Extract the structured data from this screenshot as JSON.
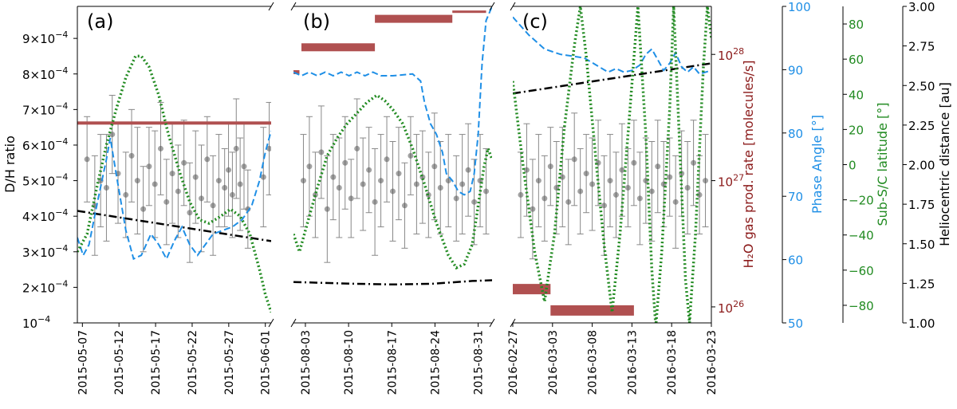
{
  "chart_data": [
    {
      "type": "scatter",
      "panel_label": "(a)",
      "x_ticks": [
        "2015-05-07",
        "2015-05-12",
        "2015-05-17",
        "2015-05-22",
        "2015-05-27",
        "2015-06-01"
      ],
      "ylabel": "D/H ratio",
      "y_ticks": [
        {
          "mantissa": "9×10",
          "exp": "−4",
          "value": 9.0
        },
        {
          "mantissa": "8×10",
          "exp": "−4",
          "value": 8.0
        },
        {
          "mantissa": "7×10",
          "exp": "−4",
          "value": 7.0
        },
        {
          "mantissa": "6×10",
          "exp": "−4",
          "value": 6.0
        },
        {
          "mantissa": "5×10",
          "exp": "−4",
          "value": 5.0
        },
        {
          "mantissa": "4×10",
          "exp": "−4",
          "value": 4.0
        },
        {
          "mantissa": "3×10",
          "exp": "−4",
          "value": 3.0
        },
        {
          "mantissa": "2×10",
          "exp": "−4",
          "value": 2.0
        },
        {
          "mantissa": "10",
          "exp": "−4",
          "value": 1.0
        }
      ],
      "ylim_1e4": [
        1.0,
        9.9
      ],
      "dh_points": [
        [
          0.05,
          5.6,
          1.2
        ],
        [
          0.09,
          4.3,
          1.4
        ],
        [
          0.12,
          5.0,
          1.3
        ],
        [
          0.15,
          4.8,
          1.5
        ],
        [
          0.18,
          6.3,
          1.1
        ],
        [
          0.21,
          5.2,
          1.4
        ],
        [
          0.25,
          4.6,
          1.2
        ],
        [
          0.28,
          5.7,
          1.3
        ],
        [
          0.31,
          5.0,
          1.5
        ],
        [
          0.34,
          4.2,
          1.2
        ],
        [
          0.37,
          5.4,
          1.1
        ],
        [
          0.4,
          4.9,
          1.5
        ],
        [
          0.43,
          5.9,
          1.3
        ],
        [
          0.46,
          4.4,
          1.2
        ],
        [
          0.49,
          5.2,
          1.4
        ],
        [
          0.52,
          4.7,
          1.3
        ],
        [
          0.55,
          5.5,
          1.2
        ],
        [
          0.58,
          4.1,
          1.4
        ],
        [
          0.61,
          5.1,
          1.3
        ],
        [
          0.64,
          4.5,
          1.5
        ],
        [
          0.67,
          5.6,
          1.2
        ],
        [
          0.7,
          4.3,
          1.4
        ],
        [
          0.73,
          5.0,
          1.3
        ],
        [
          0.76,
          4.8,
          1.1
        ],
        [
          0.78,
          5.3,
          1.3
        ],
        [
          0.8,
          4.6,
          1.2
        ],
        [
          0.82,
          5.9,
          1.4
        ],
        [
          0.84,
          4.9,
          1.3
        ],
        [
          0.86,
          5.4,
          1.2
        ],
        [
          0.88,
          4.2,
          1.1
        ],
        [
          0.96,
          5.1,
          1.4
        ],
        [
          0.99,
          5.9,
          1.3
        ]
      ],
      "water_bars": [
        {
          "start": 0.0,
          "end": 1.0,
          "level": 6.62
        }
      ],
      "phase_angle": [
        [
          0.0,
          3.4
        ],
        [
          0.03,
          2.9
        ],
        [
          0.06,
          3.2
        ],
        [
          0.1,
          4.3
        ],
        [
          0.15,
          5.6
        ],
        [
          0.17,
          6.2
        ],
        [
          0.2,
          5.2
        ],
        [
          0.25,
          3.6
        ],
        [
          0.29,
          2.8
        ],
        [
          0.33,
          2.9
        ],
        [
          0.38,
          3.5
        ],
        [
          0.42,
          3.2
        ],
        [
          0.46,
          2.8
        ],
        [
          0.5,
          3.3
        ],
        [
          0.54,
          3.7
        ],
        [
          0.58,
          3.2
        ],
        [
          0.62,
          2.9
        ],
        [
          0.66,
          3.2
        ],
        [
          0.7,
          3.5
        ],
        [
          0.75,
          3.6
        ],
        [
          0.8,
          3.7
        ],
        [
          0.85,
          3.9
        ],
        [
          0.9,
          4.3
        ],
        [
          0.94,
          5.0
        ],
        [
          0.97,
          5.8
        ],
        [
          1.0,
          6.4
        ]
      ],
      "sub_sc_latitude": [
        [
          0.0,
          3.0
        ],
        [
          0.05,
          3.5
        ],
        [
          0.1,
          4.8
        ],
        [
          0.15,
          6.0
        ],
        [
          0.2,
          7.0
        ],
        [
          0.25,
          7.9
        ],
        [
          0.3,
          8.5
        ],
        [
          0.33,
          8.5
        ],
        [
          0.37,
          8.2
        ],
        [
          0.42,
          7.4
        ],
        [
          0.47,
          6.3
        ],
        [
          0.53,
          5.2
        ],
        [
          0.58,
          4.4
        ],
        [
          0.63,
          3.9
        ],
        [
          0.68,
          3.8
        ],
        [
          0.74,
          4.0
        ],
        [
          0.79,
          4.2
        ],
        [
          0.84,
          4.0
        ],
        [
          0.89,
          3.5
        ],
        [
          0.94,
          2.5
        ],
        [
          0.97,
          1.8
        ],
        [
          1.0,
          1.3
        ]
      ],
      "heliocentric_distance": [
        [
          0.0,
          4.15
        ],
        [
          1.0,
          3.3
        ]
      ]
    },
    {
      "type": "scatter",
      "panel_label": "(b)",
      "x_ticks": [
        "2015-08-03",
        "2015-08-10",
        "2015-08-17",
        "2015-08-24",
        "2015-08-31"
      ],
      "ylim_1e4": [
        1.0,
        9.9
      ],
      "dh_points": [
        [
          0.05,
          5.0,
          1.3
        ],
        [
          0.08,
          5.4,
          1.4
        ],
        [
          0.11,
          4.6,
          1.2
        ],
        [
          0.14,
          5.8,
          1.3
        ],
        [
          0.17,
          4.2,
          1.5
        ],
        [
          0.2,
          5.1,
          1.2
        ],
        [
          0.23,
          4.8,
          1.4
        ],
        [
          0.26,
          5.5,
          1.3
        ],
        [
          0.29,
          4.5,
          1.1
        ],
        [
          0.32,
          5.9,
          1.4
        ],
        [
          0.35,
          4.9,
          1.3
        ],
        [
          0.38,
          5.3,
          1.2
        ],
        [
          0.41,
          4.4,
          1.5
        ],
        [
          0.44,
          5.0,
          1.3
        ],
        [
          0.47,
          5.6,
          1.2
        ],
        [
          0.5,
          4.7,
          1.4
        ],
        [
          0.53,
          5.2,
          1.3
        ],
        [
          0.56,
          4.3,
          1.2
        ],
        [
          0.59,
          5.7,
          1.1
        ],
        [
          0.62,
          4.9,
          1.4
        ],
        [
          0.65,
          5.1,
          1.3
        ],
        [
          0.68,
          4.6,
          1.2
        ],
        [
          0.71,
          5.4,
          1.5
        ],
        [
          0.74,
          4.8,
          1.3
        ],
        [
          0.78,
          5.0,
          1.3
        ],
        [
          0.82,
          4.5,
          1.2
        ],
        [
          0.85,
          4.9,
          1.4
        ],
        [
          0.88,
          5.3,
          1.3
        ],
        [
          0.91,
          4.4,
          1.2
        ],
        [
          0.94,
          5.0,
          1.3
        ],
        [
          0.97,
          4.7,
          1.2
        ]
      ],
      "water_bars": [
        {
          "start": 0.0,
          "end": 0.03,
          "level": 8.05
        },
        {
          "start": 0.04,
          "end": 0.41,
          "level": 8.75
        },
        {
          "start": 0.41,
          "end": 0.8,
          "level": 9.55
        },
        {
          "start": 0.8,
          "end": 0.97,
          "level": 9.75
        }
      ],
      "phase_angle": [
        [
          0.0,
          8.05
        ],
        [
          0.04,
          7.95
        ],
        [
          0.08,
          8.05
        ],
        [
          0.12,
          7.95
        ],
        [
          0.16,
          8.05
        ],
        [
          0.2,
          7.95
        ],
        [
          0.24,
          8.05
        ],
        [
          0.28,
          7.95
        ],
        [
          0.32,
          8.05
        ],
        [
          0.36,
          7.95
        ],
        [
          0.4,
          8.05
        ],
        [
          0.44,
          7.95
        ],
        [
          0.5,
          7.95
        ],
        [
          0.6,
          8.0
        ],
        [
          0.64,
          7.8
        ],
        [
          0.66,
          7.2
        ],
        [
          0.69,
          6.6
        ],
        [
          0.72,
          6.3
        ],
        [
          0.75,
          5.8
        ],
        [
          0.77,
          5.2
        ],
        [
          0.8,
          5.0
        ],
        [
          0.83,
          4.7
        ],
        [
          0.86,
          4.6
        ],
        [
          0.89,
          4.7
        ],
        [
          0.91,
          5.2
        ],
        [
          0.93,
          6.3
        ],
        [
          0.95,
          8.3
        ],
        [
          0.97,
          9.5
        ],
        [
          1.0,
          9.9
        ]
      ],
      "sub_sc_latitude": [
        [
          0.0,
          3.5
        ],
        [
          0.03,
          3.0
        ],
        [
          0.07,
          3.8
        ],
        [
          0.12,
          4.8
        ],
        [
          0.17,
          5.7
        ],
        [
          0.22,
          6.2
        ],
        [
          0.27,
          6.6
        ],
        [
          0.32,
          6.9
        ],
        [
          0.37,
          7.2
        ],
        [
          0.42,
          7.4
        ],
        [
          0.46,
          7.25
        ],
        [
          0.5,
          7.0
        ],
        [
          0.55,
          6.6
        ],
        [
          0.6,
          5.9
        ],
        [
          0.66,
          4.9
        ],
        [
          0.72,
          3.8
        ],
        [
          0.78,
          2.9
        ],
        [
          0.82,
          2.55
        ],
        [
          0.86,
          2.65
        ],
        [
          0.9,
          3.2
        ],
        [
          0.93,
          4.3
        ],
        [
          0.96,
          5.4
        ],
        [
          0.98,
          5.9
        ],
        [
          1.0,
          5.6
        ]
      ],
      "heliocentric_distance": [
        [
          0.0,
          2.15
        ],
        [
          0.3,
          2.1
        ],
        [
          0.5,
          2.08
        ],
        [
          0.7,
          2.1
        ],
        [
          0.9,
          2.18
        ],
        [
          1.0,
          2.2
        ]
      ]
    },
    {
      "type": "scatter",
      "panel_label": "(c)",
      "x_ticks": [
        "2016-02-27",
        "2016-03-03",
        "2016-03-08",
        "2016-03-13",
        "2016-03-18",
        "2016-03-23"
      ],
      "ylim_1e4": [
        1.0,
        9.9
      ],
      "dh_points": [
        [
          0.04,
          4.6,
          1.2
        ],
        [
          0.07,
          5.3,
          1.3
        ],
        [
          0.1,
          4.2,
          1.4
        ],
        [
          0.13,
          5.0,
          1.3
        ],
        [
          0.16,
          4.5,
          1.2
        ],
        [
          0.19,
          5.4,
          1.1
        ],
        [
          0.22,
          4.8,
          1.3
        ],
        [
          0.25,
          5.1,
          1.4
        ],
        [
          0.28,
          4.4,
          1.2
        ],
        [
          0.31,
          5.6,
          1.3
        ],
        [
          0.34,
          4.7,
          1.2
        ],
        [
          0.37,
          5.2,
          1.1
        ],
        [
          0.4,
          4.9,
          1.3
        ],
        [
          0.43,
          5.5,
          1.2
        ],
        [
          0.46,
          4.3,
          1.4
        ],
        [
          0.49,
          5.0,
          1.3
        ],
        [
          0.52,
          4.6,
          1.2
        ],
        [
          0.55,
          5.3,
          1.3
        ],
        [
          0.58,
          4.8,
          1.1
        ],
        [
          0.61,
          5.5,
          1.2
        ],
        [
          0.64,
          4.5,
          1.3
        ],
        [
          0.67,
          5.0,
          1.2
        ],
        [
          0.7,
          4.7,
          1.4
        ],
        [
          0.73,
          5.4,
          1.3
        ],
        [
          0.76,
          4.9,
          1.2
        ],
        [
          0.79,
          5.1,
          1.1
        ],
        [
          0.82,
          4.4,
          1.3
        ],
        [
          0.85,
          5.2,
          1.2
        ],
        [
          0.88,
          4.8,
          1.3
        ],
        [
          0.91,
          5.5,
          1.2
        ],
        [
          0.94,
          4.6,
          1.1
        ],
        [
          0.97,
          5.0,
          1.3
        ]
      ],
      "water_bars": [
        {
          "start": 0.0,
          "end": 0.19,
          "level": 1.95
        },
        {
          "start": 0.19,
          "end": 0.61,
          "level": 1.35
        }
      ],
      "phase_angle": [
        [
          0.0,
          9.6
        ],
        [
          0.08,
          9.1
        ],
        [
          0.16,
          8.7
        ],
        [
          0.24,
          8.55
        ],
        [
          0.3,
          8.5
        ],
        [
          0.36,
          8.45
        ],
        [
          0.42,
          8.25
        ],
        [
          0.48,
          8.05
        ],
        [
          0.52,
          8.15
        ],
        [
          0.56,
          8.05
        ],
        [
          0.6,
          8.1
        ],
        [
          0.64,
          8.25
        ],
        [
          0.67,
          8.55
        ],
        [
          0.7,
          8.7
        ],
        [
          0.73,
          8.4
        ],
        [
          0.76,
          8.1
        ],
        [
          0.79,
          8.3
        ],
        [
          0.82,
          8.6
        ],
        [
          0.85,
          8.2
        ],
        [
          0.88,
          8.05
        ],
        [
          0.91,
          8.2
        ],
        [
          0.94,
          8.0
        ],
        [
          1.0,
          8.1
        ]
      ],
      "sub_sc_latitude": [
        [
          0.0,
          7.8
        ],
        [
          0.05,
          5.5
        ],
        [
          0.11,
          3.0
        ],
        [
          0.16,
          1.6
        ],
        [
          0.21,
          3.5
        ],
        [
          0.26,
          6.5
        ],
        [
          0.31,
          8.8
        ],
        [
          0.34,
          9.9
        ],
        [
          0.37,
          8.5
        ],
        [
          0.42,
          5.5
        ],
        [
          0.46,
          3.2
        ],
        [
          0.5,
          1.3
        ],
        [
          0.54,
          3.5
        ],
        [
          0.59,
          7.0
        ],
        [
          0.63,
          9.9
        ],
        [
          0.67,
          6.3
        ],
        [
          0.7,
          2.5
        ],
        [
          0.72,
          0.9
        ],
        [
          0.75,
          3.0
        ],
        [
          0.79,
          7.0
        ],
        [
          0.81,
          9.9
        ],
        [
          0.84,
          6.0
        ],
        [
          0.87,
          2.2
        ],
        [
          0.89,
          1.0
        ],
        [
          0.92,
          3.5
        ],
        [
          0.96,
          8.2
        ],
        [
          0.98,
          9.9
        ],
        [
          1.0,
          9.0
        ]
      ],
      "heliocentric_distance": [
        [
          0.0,
          7.45
        ],
        [
          1.0,
          8.3
        ]
      ]
    }
  ],
  "right_axes": {
    "water": {
      "label": "H₂O gas prod. rate [molecules/s]",
      "ticks": [
        {
          "base": "10",
          "exp": "28",
          "value_1e4": 8.55
        },
        {
          "base": "10",
          "exp": "27",
          "value_1e4": 5.0
        },
        {
          "base": "10",
          "exp": "26",
          "value_1e4": 1.45
        }
      ],
      "color": "#8b1a1a"
    },
    "phase": {
      "label": "Phase Angle [°]",
      "ticks": [
        "100",
        "90",
        "80",
        "70",
        "60",
        "50"
      ],
      "ylim": [
        50,
        100
      ],
      "color": "#1f8fe6"
    },
    "latitude": {
      "label": "Sub-S/C latitude [°]",
      "ticks": [
        "80",
        "60",
        "40",
        "20",
        "0",
        "−20",
        "−40",
        "−60",
        "−80"
      ],
      "tick_values": [
        80,
        60,
        40,
        20,
        0,
        -20,
        -40,
        -60,
        -80
      ],
      "ylim": [
        -90,
        90
      ],
      "color": "#228b22"
    },
    "helio": {
      "label": "Heliocentric distance [au]",
      "ticks": [
        "3.00",
        "2.75",
        "2.50",
        "2.25",
        "2.00",
        "1.75",
        "1.50",
        "1.25",
        "1.00"
      ],
      "ylim": [
        1.0,
        3.0
      ],
      "color": "#000000"
    }
  },
  "colors": {
    "points": "#555555",
    "water_bar": "#b05050",
    "phase_line": "#1f8fe6",
    "latitude_line": "#228b22",
    "helio_line": "#000000"
  }
}
